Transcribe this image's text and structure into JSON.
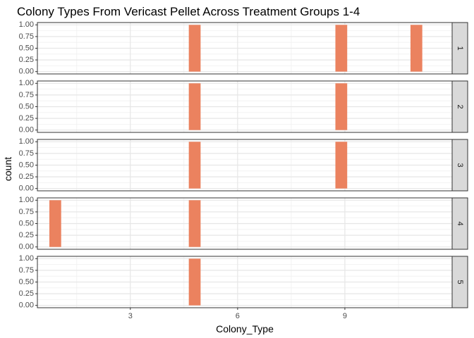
{
  "chart_data": {
    "type": "bar",
    "title": "Colony Types From Vericast Pellet Across Treatment Groups 1-4",
    "xlabel": "Colony_Type",
    "ylabel": "count",
    "xlim": [
      0.4,
      12.0
    ],
    "ylim": [
      -0.05,
      1.05
    ],
    "x_ticks": [
      3,
      6,
      9
    ],
    "y_ticks": [
      0.0,
      0.25,
      0.5,
      0.75,
      1.0
    ],
    "y_tick_labels": [
      "0.00",
      "0.25",
      "0.50",
      "0.75",
      "1.00"
    ],
    "bar_width": 0.33,
    "bar_color": "#EB825F",
    "grid": true,
    "facets": [
      {
        "label": "1",
        "bars": [
          {
            "x": 4.8,
            "count": 1
          },
          {
            "x": 8.9,
            "count": 1
          },
          {
            "x": 11.0,
            "count": 1
          }
        ]
      },
      {
        "label": "2",
        "bars": [
          {
            "x": 4.8,
            "count": 1
          },
          {
            "x": 8.9,
            "count": 1
          }
        ]
      },
      {
        "label": "3",
        "bars": [
          {
            "x": 4.8,
            "count": 1
          },
          {
            "x": 8.9,
            "count": 1
          }
        ]
      },
      {
        "label": "4",
        "bars": [
          {
            "x": 0.9,
            "count": 1
          },
          {
            "x": 4.8,
            "count": 1
          }
        ]
      },
      {
        "label": "5",
        "bars": [
          {
            "x": 4.8,
            "count": 1
          }
        ]
      }
    ]
  }
}
